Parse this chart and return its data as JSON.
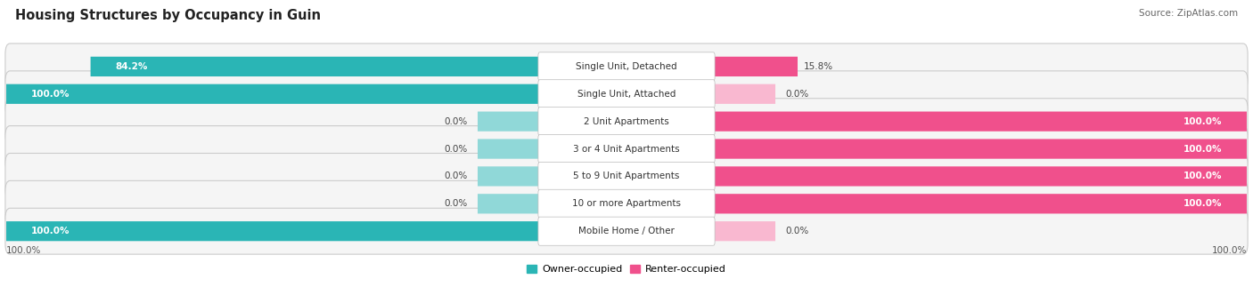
{
  "title": "Housing Structures by Occupancy in Guin",
  "source": "Source: ZipAtlas.com",
  "categories": [
    "Single Unit, Detached",
    "Single Unit, Attached",
    "2 Unit Apartments",
    "3 or 4 Unit Apartments",
    "5 to 9 Unit Apartments",
    "10 or more Apartments",
    "Mobile Home / Other"
  ],
  "owner_pct": [
    84.2,
    100.0,
    0.0,
    0.0,
    0.0,
    0.0,
    100.0
  ],
  "renter_pct": [
    15.8,
    0.0,
    100.0,
    100.0,
    100.0,
    100.0,
    0.0
  ],
  "owner_color": "#2ab5b5",
  "renter_color": "#f0508c",
  "owner_stub_color": "#90d8d8",
  "renter_stub_color": "#f9b8d0",
  "row_bg_color": "#e8e8e8",
  "row_inner_color": "#f5f5f5",
  "title_fontsize": 10.5,
  "label_fontsize": 7.5,
  "pct_fontsize": 7.5,
  "legend_fontsize": 8,
  "source_fontsize": 7.5,
  "axis_fontsize": 7.5,
  "figsize": [
    14.06,
    3.41
  ],
  "dpi": 100
}
